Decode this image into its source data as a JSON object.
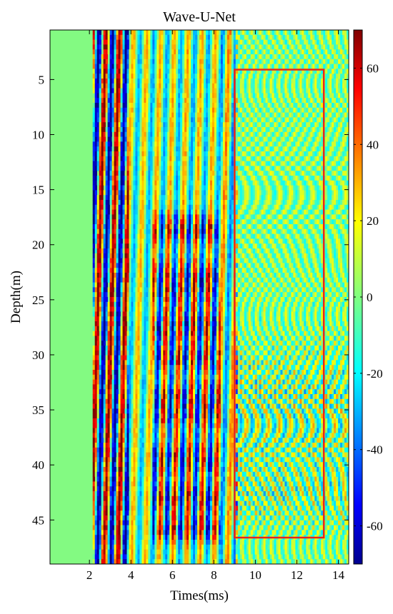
{
  "chart_data": {
    "type": "heatmap",
    "title": "Wave-U-Net",
    "xlabel": "Times(ms)",
    "ylabel": "Depth(m)",
    "xlim": [
      0.1,
      14.5
    ],
    "ylim": [
      49,
      0.5
    ],
    "xticks": [
      2,
      4,
      6,
      8,
      10,
      12,
      14
    ],
    "yticks": [
      5,
      10,
      15,
      20,
      25,
      30,
      35,
      40,
      45
    ],
    "colorbar": {
      "min": -70,
      "max": 70,
      "ticks": [
        -60,
        -40,
        -20,
        0,
        20,
        40,
        60
      ],
      "colormap": "jet"
    },
    "highlight_box": {
      "x_range": [
        9.0,
        13.3
      ],
      "y_range": [
        4.1,
        46.6
      ],
      "color": "#e8231c"
    },
    "background_value_color": "#83fa82"
  }
}
